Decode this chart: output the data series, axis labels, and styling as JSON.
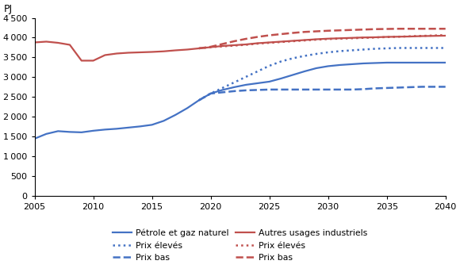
{
  "ylabel": "PJ",
  "xlim": [
    2005,
    2040
  ],
  "ylim": [
    0,
    4500
  ],
  "yticks": [
    0,
    500,
    1000,
    1500,
    2000,
    2500,
    3000,
    3500,
    4000,
    4500
  ],
  "xticks": [
    2005,
    2010,
    2015,
    2020,
    2025,
    2030,
    2035,
    2040
  ],
  "series": {
    "blue_solid": {
      "label": "Pétrole et gaz naturel",
      "color": "#4472C4",
      "linestyle": "solid",
      "linewidth": 1.6,
      "x": [
        2005,
        2006,
        2007,
        2008,
        2009,
        2010,
        2011,
        2012,
        2013,
        2014,
        2015,
        2016,
        2017,
        2018,
        2019,
        2020,
        2021,
        2022,
        2023,
        2024,
        2025,
        2026,
        2027,
        2028,
        2029,
        2030,
        2031,
        2032,
        2033,
        2034,
        2035,
        2036,
        2037,
        2038,
        2039,
        2040
      ],
      "y": [
        1450,
        1570,
        1640,
        1620,
        1610,
        1650,
        1680,
        1700,
        1730,
        1760,
        1800,
        1900,
        2050,
        2220,
        2420,
        2590,
        2680,
        2750,
        2810,
        2850,
        2890,
        2970,
        3060,
        3150,
        3230,
        3280,
        3310,
        3330,
        3350,
        3360,
        3370,
        3370,
        3370,
        3370,
        3370,
        3370
      ]
    },
    "blue_dotted": {
      "label": "Prix élevés",
      "color": "#4472C4",
      "linestyle": "dotted",
      "linewidth": 1.8,
      "x": [
        2019,
        2020,
        2021,
        2022,
        2023,
        2024,
        2025,
        2026,
        2027,
        2028,
        2029,
        2030,
        2031,
        2032,
        2033,
        2034,
        2035,
        2036,
        2037,
        2038,
        2039,
        2040
      ],
      "y": [
        2420,
        2590,
        2730,
        2870,
        3010,
        3150,
        3290,
        3400,
        3480,
        3540,
        3590,
        3630,
        3660,
        3680,
        3700,
        3720,
        3730,
        3740,
        3740,
        3740,
        3740,
        3740
      ]
    },
    "blue_dashed": {
      "label": "Prix bas",
      "color": "#4472C4",
      "linestyle": "dashed",
      "linewidth": 1.8,
      "x": [
        2019,
        2020,
        2021,
        2022,
        2023,
        2024,
        2025,
        2026,
        2027,
        2028,
        2029,
        2030,
        2031,
        2032,
        2033,
        2034,
        2035,
        2036,
        2037,
        2038,
        2039,
        2040
      ],
      "y": [
        2420,
        2590,
        2620,
        2650,
        2670,
        2680,
        2690,
        2690,
        2690,
        2690,
        2690,
        2690,
        2690,
        2690,
        2700,
        2720,
        2730,
        2740,
        2750,
        2760,
        2760,
        2760
      ]
    },
    "red_solid": {
      "label": "Autres usages industriels",
      "color": "#C0504D",
      "linestyle": "solid",
      "linewidth": 1.6,
      "x": [
        2005,
        2006,
        2007,
        2008,
        2009,
        2010,
        2011,
        2012,
        2013,
        2014,
        2015,
        2016,
        2017,
        2018,
        2019,
        2020,
        2021,
        2022,
        2023,
        2024,
        2025,
        2026,
        2027,
        2028,
        2029,
        2030,
        2031,
        2032,
        2033,
        2034,
        2035,
        2036,
        2037,
        2038,
        2039,
        2040
      ],
      "y": [
        3880,
        3900,
        3870,
        3820,
        3420,
        3420,
        3560,
        3600,
        3620,
        3630,
        3640,
        3655,
        3680,
        3700,
        3730,
        3760,
        3790,
        3810,
        3830,
        3860,
        3880,
        3900,
        3920,
        3940,
        3960,
        3975,
        3985,
        3995,
        4005,
        4010,
        4020,
        4025,
        4030,
        4040,
        4045,
        4050
      ]
    },
    "red_dotted": {
      "label": "Prix élevés",
      "color": "#C0504D",
      "linestyle": "dotted",
      "linewidth": 1.8,
      "x": [
        2019,
        2020,
        2021,
        2022,
        2023,
        2024,
        2025,
        2026,
        2027,
        2028,
        2029,
        2030,
        2031,
        2032,
        2033,
        2034,
        2035,
        2036,
        2037,
        2038,
        2039,
        2040
      ],
      "y": [
        3730,
        3760,
        3780,
        3800,
        3820,
        3850,
        3870,
        3890,
        3910,
        3930,
        3950,
        3965,
        3975,
        3985,
        3995,
        4005,
        4015,
        4025,
        4035,
        4045,
        4055,
        4065
      ]
    },
    "red_dashed": {
      "label": "Prix bas",
      "color": "#C0504D",
      "linestyle": "dashed",
      "linewidth": 1.8,
      "x": [
        2019,
        2020,
        2021,
        2022,
        2023,
        2024,
        2025,
        2026,
        2027,
        2028,
        2029,
        2030,
        2031,
        2032,
        2033,
        2034,
        2035,
        2036,
        2037,
        2038,
        2039,
        2040
      ],
      "y": [
        3730,
        3770,
        3840,
        3910,
        3970,
        4020,
        4060,
        4090,
        4120,
        4145,
        4160,
        4175,
        4185,
        4195,
        4205,
        4215,
        4220,
        4225,
        4225,
        4225,
        4225,
        4225
      ]
    }
  },
  "legend_col1": [
    {
      "label": "Pétrole et gaz naturel",
      "color": "#4472C4",
      "linestyle": "solid"
    },
    {
      "label": "Prix bas",
      "color": "#4472C4",
      "linestyle": "dashed"
    },
    {
      "label": "Prix élevés",
      "color": "#C0504D",
      "linestyle": "dotted"
    }
  ],
  "legend_col2": [
    {
      "label": "Prix élevés",
      "color": "#4472C4",
      "linestyle": "dotted"
    },
    {
      "label": "Autres usages industriels",
      "color": "#C0504D",
      "linestyle": "solid"
    },
    {
      "label": "Prix bas",
      "color": "#C0504D",
      "linestyle": "dashed"
    }
  ]
}
